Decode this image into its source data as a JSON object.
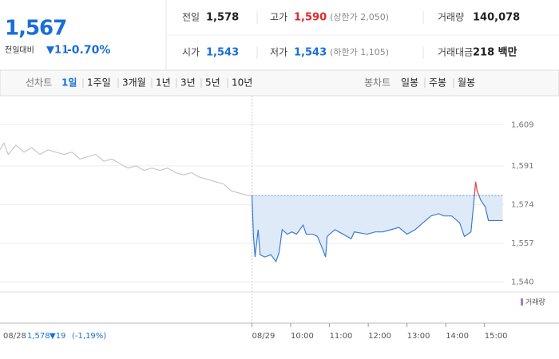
{
  "header": {
    "price": "1,567",
    "change_label": "전일대비",
    "change": "▼11",
    "change_rate": "-0.70%",
    "items": [
      {
        "label": "전일",
        "value": "1,578",
        "color": "#222222"
      },
      {
        "label": "고가",
        "value": "1,590",
        "note": "(상한가 2,050)",
        "color": "#e0282d"
      },
      {
        "label": "거래량",
        "value": "140,078",
        "color": "#222222"
      },
      {
        "label": "시가",
        "value": "1,543",
        "color": "#1a6ed8"
      },
      {
        "label": "저가",
        "value": "1,543",
        "note": "(하한가 1,105)",
        "color": "#1a6ed8"
      },
      {
        "label": "거래대금",
        "value": "218 백만",
        "color": "#222222"
      }
    ]
  },
  "tabs": {
    "line_label": "선차트",
    "line_tabs": [
      "1일",
      "1주일",
      "3개월",
      "1년",
      "3년",
      "5년",
      "10년"
    ],
    "line_selected": 0,
    "candle_label": "봉차트",
    "candle_tabs": [
      "일봉",
      "주봉",
      "월봉"
    ]
  },
  "info": {
    "date": "08/28",
    "price": "1,578",
    "change": "▼19",
    "rate": "(-1,19%)"
  },
  "chart_data": {
    "type": "line",
    "legend": "거래량",
    "baseline": 1578,
    "xlim": [
      -6.5,
      6.5
    ],
    "xticks": [
      {
        "value": 0,
        "label": "08/29"
      },
      {
        "value": 1,
        "label": "10:00"
      },
      {
        "value": 2,
        "label": "11:00"
      },
      {
        "value": 3,
        "label": "12:00"
      },
      {
        "value": 4,
        "label": "13:00"
      },
      {
        "value": 5,
        "label": "14:00"
      },
      {
        "value": 6,
        "label": "15:00"
      }
    ],
    "ylim": [
      1536,
      1620
    ],
    "yticks": [
      {
        "value": 1540,
        "label": "1,540"
      },
      {
        "value": 1557,
        "label": "1,557"
      },
      {
        "value": 1574,
        "label": "1,574"
      },
      {
        "value": 1591,
        "label": "1,591"
      },
      {
        "value": 1609,
        "label": "1,609"
      }
    ],
    "grid": true,
    "series": [
      {
        "color": "#c8c8c8",
        "x": [
          -6.5,
          -6.4,
          -6.29,
          -6.09,
          -5.88,
          -5.68,
          -5.47,
          -5.26,
          -5.06,
          -4.85,
          -4.64,
          -4.44,
          -4.23,
          -4.03,
          -3.82,
          -3.61,
          -3.41,
          -3.2,
          -2.99,
          -2.79,
          -2.58,
          -2.38,
          -2.17,
          -1.97,
          -1.76,
          -1.56,
          -1.35,
          -1.14,
          -0.94,
          -0.73,
          -0.53,
          -0.32,
          -0.12,
          0
        ],
        "values": [
          1598,
          1601,
          1596,
          1600,
          1597,
          1599,
          1596,
          1598,
          1597,
          1596,
          1597,
          1594,
          1595,
          1596,
          1593,
          1594,
          1592,
          1590,
          1591,
          1589,
          1590,
          1589,
          1590,
          1588,
          1587,
          1588,
          1586,
          1585,
          1584,
          1583,
          1580,
          1579,
          1578,
          1578
        ]
      },
      {
        "color": "#3a7bd5",
        "up_color": "#f04a4a",
        "fill": "#dfeaf8",
        "x": [
          0,
          0.04,
          0.08,
          0.16,
          0.21,
          0.33,
          0.49,
          0.62,
          0.7,
          0.78,
          0.91,
          1.03,
          1.15,
          1.32,
          1.4,
          1.57,
          1.69,
          1.81,
          1.9,
          1.94,
          2.14,
          2.35,
          2.56,
          2.64,
          2.97,
          3.18,
          3.38,
          3.59,
          3.79,
          4.0,
          4.21,
          4.41,
          4.62,
          4.82,
          4.95,
          5.15,
          5.36,
          5.48,
          5.65,
          5.73,
          5.77,
          5.81,
          5.9,
          6.02,
          6.1,
          6.47
        ],
        "values": [
          1578,
          1560,
          1551,
          1563,
          1552,
          1551,
          1552,
          1549,
          1553,
          1563,
          1561,
          1562,
          1561,
          1565,
          1561,
          1561,
          1560,
          1555,
          1551,
          1560,
          1563,
          1561,
          1559,
          1562,
          1561,
          1562,
          1562,
          1563,
          1564,
          1561,
          1563,
          1566,
          1569,
          1570,
          1569,
          1569,
          1566,
          1560,
          1562,
          1576,
          1584,
          1580,
          1576,
          1573,
          1567,
          1567
        ]
      }
    ]
  }
}
